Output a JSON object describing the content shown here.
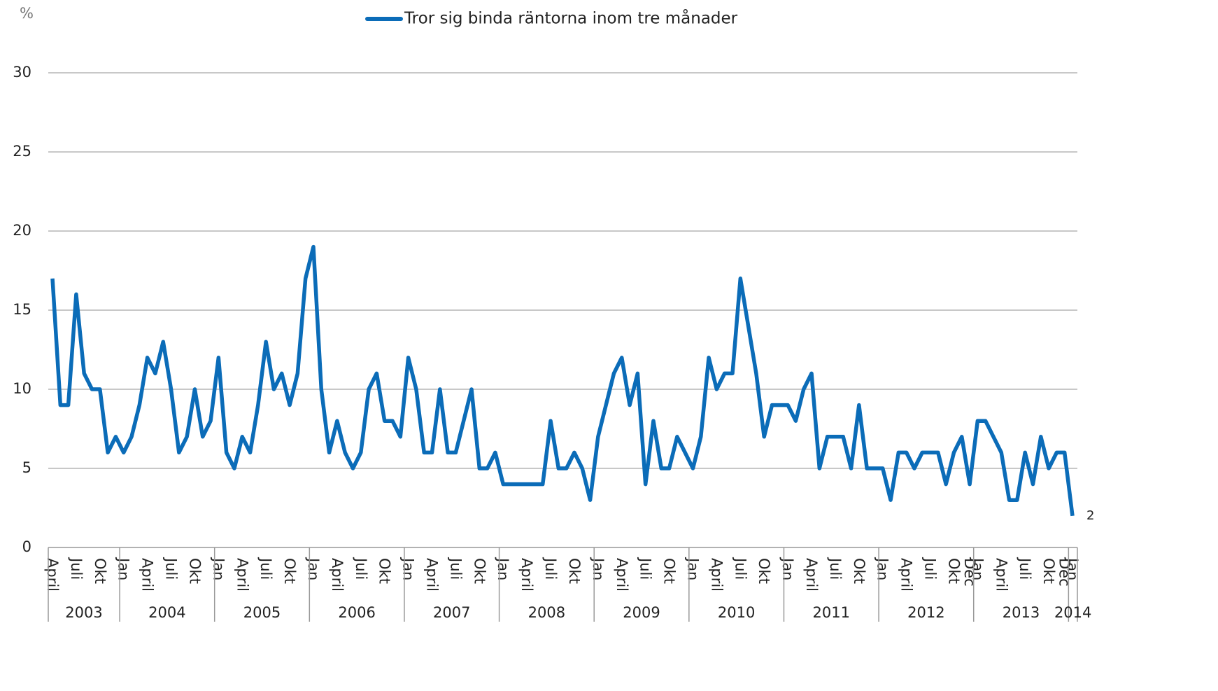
{
  "chart_data": {
    "type": "line",
    "y_unit": "%",
    "series": [
      {
        "name": "Tror sig binda räntorna inom tre månader",
        "color": "#0b6cb8",
        "values": [
          17,
          9,
          9,
          16,
          11,
          10,
          10,
          6,
          7,
          6,
          7,
          9,
          12,
          11,
          13,
          10,
          6,
          7,
          10,
          7,
          8,
          12,
          6,
          5,
          7,
          6,
          9,
          13,
          10,
          11,
          9,
          11,
          17,
          19,
          10,
          6,
          8,
          6,
          5,
          6,
          10,
          11,
          8,
          8,
          7,
          12,
          10,
          6,
          6,
          10,
          6,
          6,
          8,
          10,
          5,
          5,
          6,
          4,
          4,
          4,
          4,
          4,
          4,
          8,
          5,
          5,
          6,
          5,
          3,
          7,
          9,
          11,
          12,
          9,
          11,
          4,
          8,
          5,
          5,
          7,
          6,
          5,
          7,
          12,
          10,
          11,
          11,
          17,
          14,
          11,
          7,
          9,
          9,
          9,
          8,
          10,
          11,
          5,
          7,
          7,
          7,
          5,
          9,
          5,
          5,
          5,
          3,
          6,
          6,
          5,
          6,
          6,
          6,
          4,
          6,
          7,
          4,
          8,
          8,
          7,
          6,
          3,
          3,
          6,
          4,
          7,
          5,
          6,
          6,
          2
        ]
      }
    ],
    "categories": [
      "April",
      null,
      null,
      "Juli",
      null,
      null,
      "Okt",
      null,
      null,
      "Jan",
      null,
      null,
      "April",
      null,
      null,
      "Juli",
      null,
      null,
      "Okt",
      null,
      null,
      "Jan",
      null,
      null,
      "April",
      null,
      null,
      "Juli",
      null,
      null,
      "Okt",
      null,
      null,
      "Jan",
      null,
      null,
      "April",
      null,
      null,
      "Juli",
      null,
      null,
      "Okt",
      null,
      null,
      "Jan",
      null,
      null,
      "April",
      null,
      null,
      "Juli",
      null,
      null,
      "Okt",
      null,
      null,
      "Jan",
      null,
      null,
      "April",
      null,
      null,
      "Juli",
      null,
      null,
      "Okt",
      null,
      null,
      "Jan",
      null,
      null,
      "April",
      null,
      null,
      "Juli",
      null,
      null,
      "Okt",
      null,
      null,
      "Jan",
      null,
      null,
      "April",
      null,
      null,
      "Juli",
      null,
      null,
      "Okt",
      null,
      null,
      "Jan",
      null,
      null,
      "April",
      null,
      null,
      "Juli",
      null,
      null,
      "Okt",
      null,
      null,
      "Jan",
      null,
      null,
      "April",
      null,
      null,
      "Juli",
      null,
      null,
      "Okt",
      null,
      "Dec",
      "Jan",
      null,
      null,
      "April",
      null,
      null,
      "Juli",
      null,
      null,
      "Okt",
      null,
      "Dec",
      "Jan"
    ],
    "years": [
      "2003",
      "2004",
      "2005",
      "2006",
      "2007",
      "2008",
      "2009",
      "2010",
      "2011",
      "2012",
      "2013",
      "2014"
    ],
    "ylim": [
      0,
      30
    ],
    "yticks": [
      0,
      5,
      10,
      15,
      20,
      25,
      30
    ],
    "grid": true,
    "label_last": true,
    "legend": "top"
  }
}
